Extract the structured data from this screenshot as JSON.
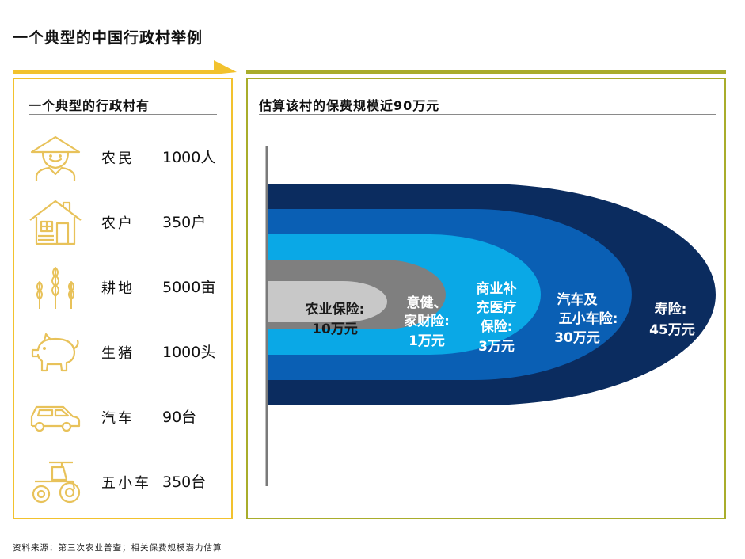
{
  "page": {
    "title": "一个典型的中国行政村举例",
    "source": "资料来源：第三次农业普查；相关保费规模潜力估算"
  },
  "colors": {
    "accent_yellow": "#f2c22e",
    "accent_olive": "#a9ad2b",
    "icon_gold": "#e8c25a",
    "ring_navy": "#0b2c5f",
    "ring_blue": "#0a5fb4",
    "ring_cyan": "#0aa8e6",
    "ring_gray": "#7f7f7f",
    "ring_lightgray": "#c8c8c8"
  },
  "left_panel": {
    "heading": "一个典型的行政村有",
    "items": [
      {
        "icon": "farmer-icon",
        "label": "农民",
        "value": "1000人"
      },
      {
        "icon": "house-icon",
        "label": "农户",
        "value": "350户"
      },
      {
        "icon": "wheat-icon",
        "label": "耕地",
        "value": "5000亩"
      },
      {
        "icon": "pig-icon",
        "label": "生猪",
        "value": "1000头"
      },
      {
        "icon": "car-icon",
        "label": "汽车",
        "value": "90台"
      },
      {
        "icon": "tractor-icon",
        "label": "五小车",
        "value": "350台"
      }
    ]
  },
  "right_panel": {
    "heading": "估算该村的保费规模近90万元",
    "rings": [
      {
        "lines": [
          "寿险:",
          "45万元"
        ],
        "value_wan": 45
      },
      {
        "lines": [
          "汽车及",
          "五小车险:",
          "30万元"
        ],
        "value_wan": 30
      },
      {
        "lines": [
          "商业补",
          "充医疗",
          "保险:",
          "3万元"
        ],
        "value_wan": 3
      },
      {
        "lines": [
          "意健、",
          "家财险:",
          "1万元"
        ],
        "value_wan": 1
      },
      {
        "lines": [
          "农业保险:",
          "10万元"
        ],
        "value_wan": 10
      }
    ]
  }
}
